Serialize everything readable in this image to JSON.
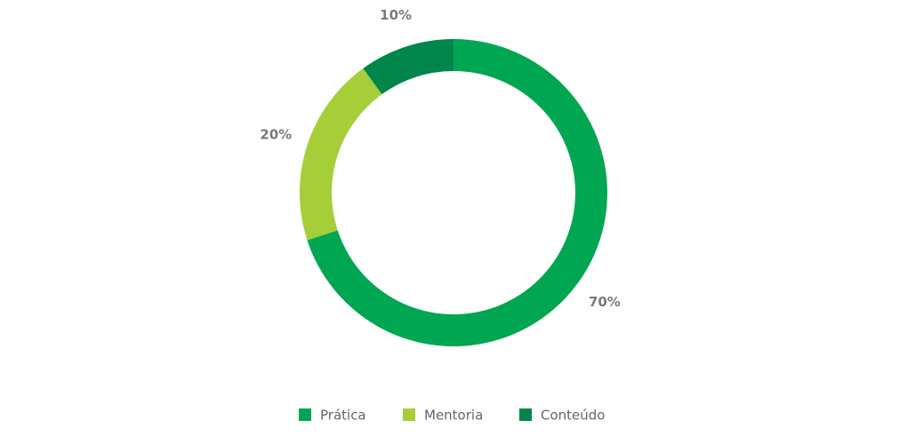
{
  "chart_data": {
    "type": "donut",
    "categories": [
      "Prática",
      "Mentoria",
      "Conteúdo"
    ],
    "values": [
      70,
      20,
      10
    ],
    "value_labels": [
      "70%",
      "20%",
      "10%"
    ],
    "colors": [
      "#00a651",
      "#a6ce39",
      "#00864a"
    ],
    "legend": "bottom"
  }
}
